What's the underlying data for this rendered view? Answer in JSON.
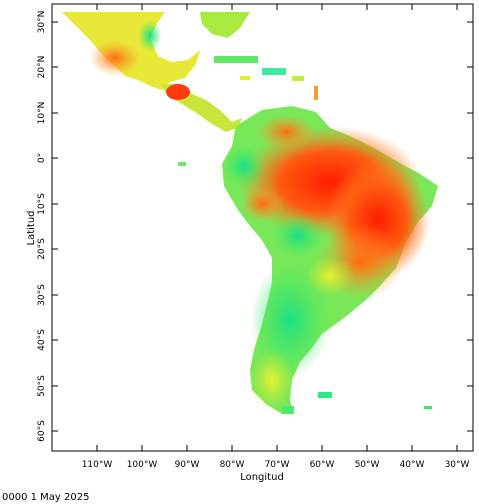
{
  "map": {
    "x_axis_title": "Longitud",
    "y_axis_title": "Latitud",
    "timestamp": "0000 1 May 2025",
    "lon_labels": [
      "110°W",
      "100°W",
      "90°W",
      "80°W",
      "70°W",
      "60°W",
      "50°W",
      "40°W",
      "30°W"
    ],
    "lat_labels": [
      "30°N",
      "20°N",
      "10°N",
      "0°",
      "10°S",
      "20°S",
      "30°S",
      "40°S",
      "50°S",
      "60°S"
    ],
    "colors": {
      "frame": "#000000",
      "low": "#00e676",
      "mid": "#d8f02a",
      "high": "#ff2a00"
    }
  }
}
